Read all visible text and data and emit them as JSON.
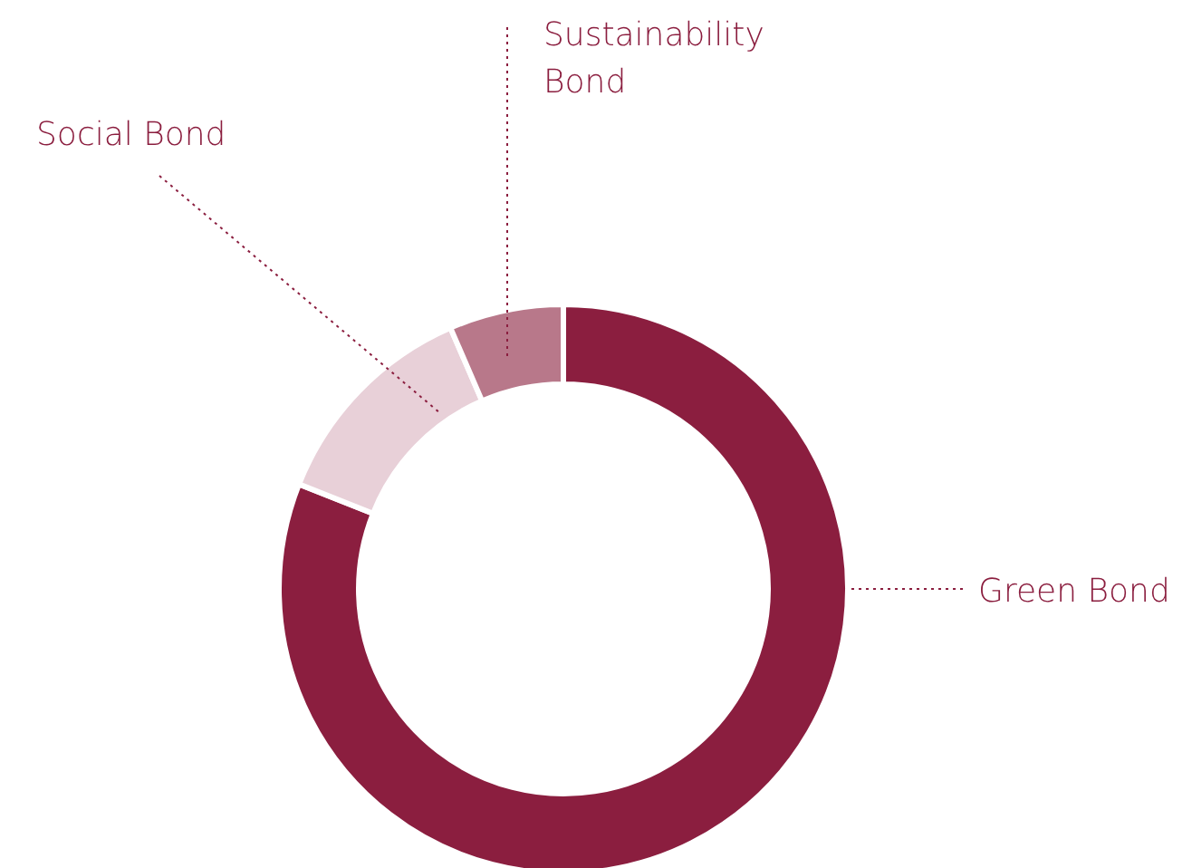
{
  "chart_data": {
    "type": "donut",
    "categories": [
      "Green Bond",
      "Social Bond",
      "Sustainability Bond"
    ],
    "values": [
      81,
      12.5,
      6.5
    ],
    "colors": [
      "#8b1e3f",
      "#e8d0d8",
      "#b8788a"
    ]
  }
}
